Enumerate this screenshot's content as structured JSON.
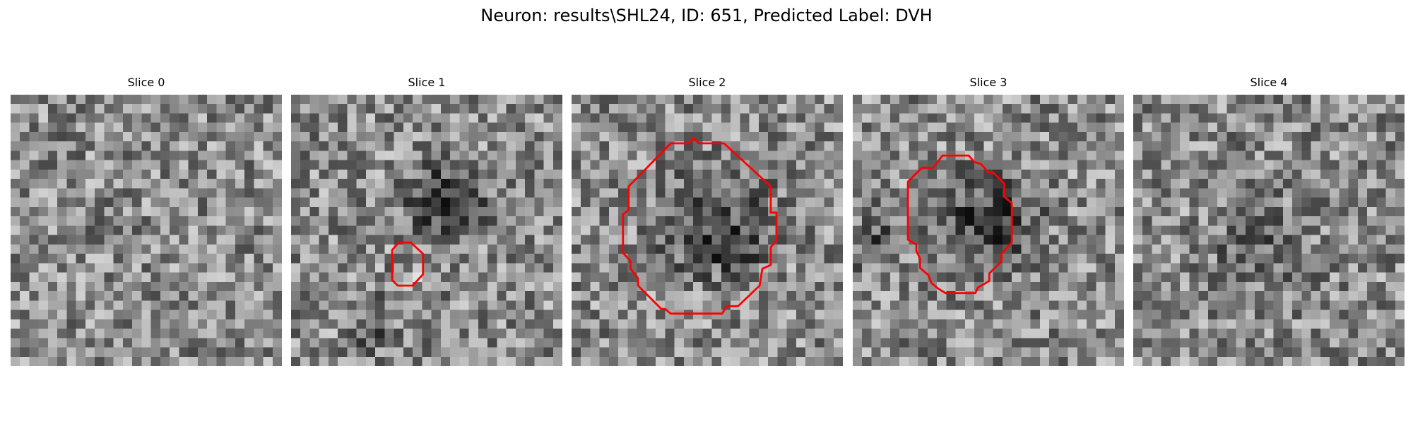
{
  "figure": {
    "title": "Neuron: results\\SHL24, ID: 651, Predicted Label: DVH"
  },
  "slices": [
    {
      "label": "Slice 0",
      "has_roi": false
    },
    {
      "label": "Slice 1",
      "has_roi": true
    },
    {
      "label": "Slice 2",
      "has_roi": true
    },
    {
      "label": "Slice 3",
      "has_roi": true
    },
    {
      "label": "Slice 4",
      "has_roi": false
    }
  ],
  "colors": {
    "roi_outline": "#ff0000",
    "background": "#ffffff",
    "text": "#000000"
  },
  "colormap": "gray"
}
